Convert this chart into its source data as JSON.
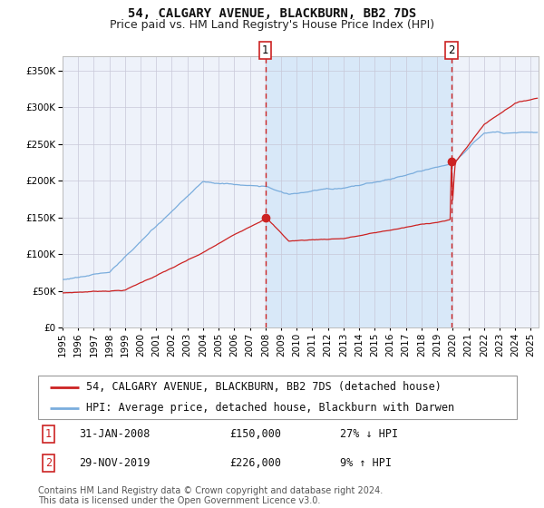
{
  "title": "54, CALGARY AVENUE, BLACKBURN, BB2 7DS",
  "subtitle": "Price paid vs. HM Land Registry's House Price Index (HPI)",
  "hpi_label": "HPI: Average price, detached house, Blackburn with Darwen",
  "price_label": "54, CALGARY AVENUE, BLACKBURN, BB2 7DS (detached house)",
  "annotation1": {
    "label": "1",
    "date_str": "31-JAN-2008",
    "price": 150000,
    "hpi_pct": "27% ↓ HPI"
  },
  "annotation2": {
    "label": "2",
    "date_str": "29-NOV-2019",
    "price": 226000,
    "hpi_pct": "9% ↑ HPI"
  },
  "footnote": "Contains HM Land Registry data © Crown copyright and database right 2024.\nThis data is licensed under the Open Government Licence v3.0.",
  "ylim": [
    0,
    370000
  ],
  "yticks": [
    0,
    50000,
    100000,
    150000,
    200000,
    250000,
    300000,
    350000
  ],
  "background_color": "#ffffff",
  "plot_bg_color": "#eef2fa",
  "hpi_color": "#7aaddd",
  "price_color": "#cc2222",
  "grid_color": "#c8c8d8",
  "shade_color": "#d8e8f8",
  "dashed_line_color": "#cc2222",
  "marker_color": "#cc2222",
  "title_fontsize": 10,
  "subtitle_fontsize": 9,
  "tick_fontsize": 7.5,
  "legend_fontsize": 8.5,
  "anno_fontsize": 8.5,
  "footnote_fontsize": 7
}
